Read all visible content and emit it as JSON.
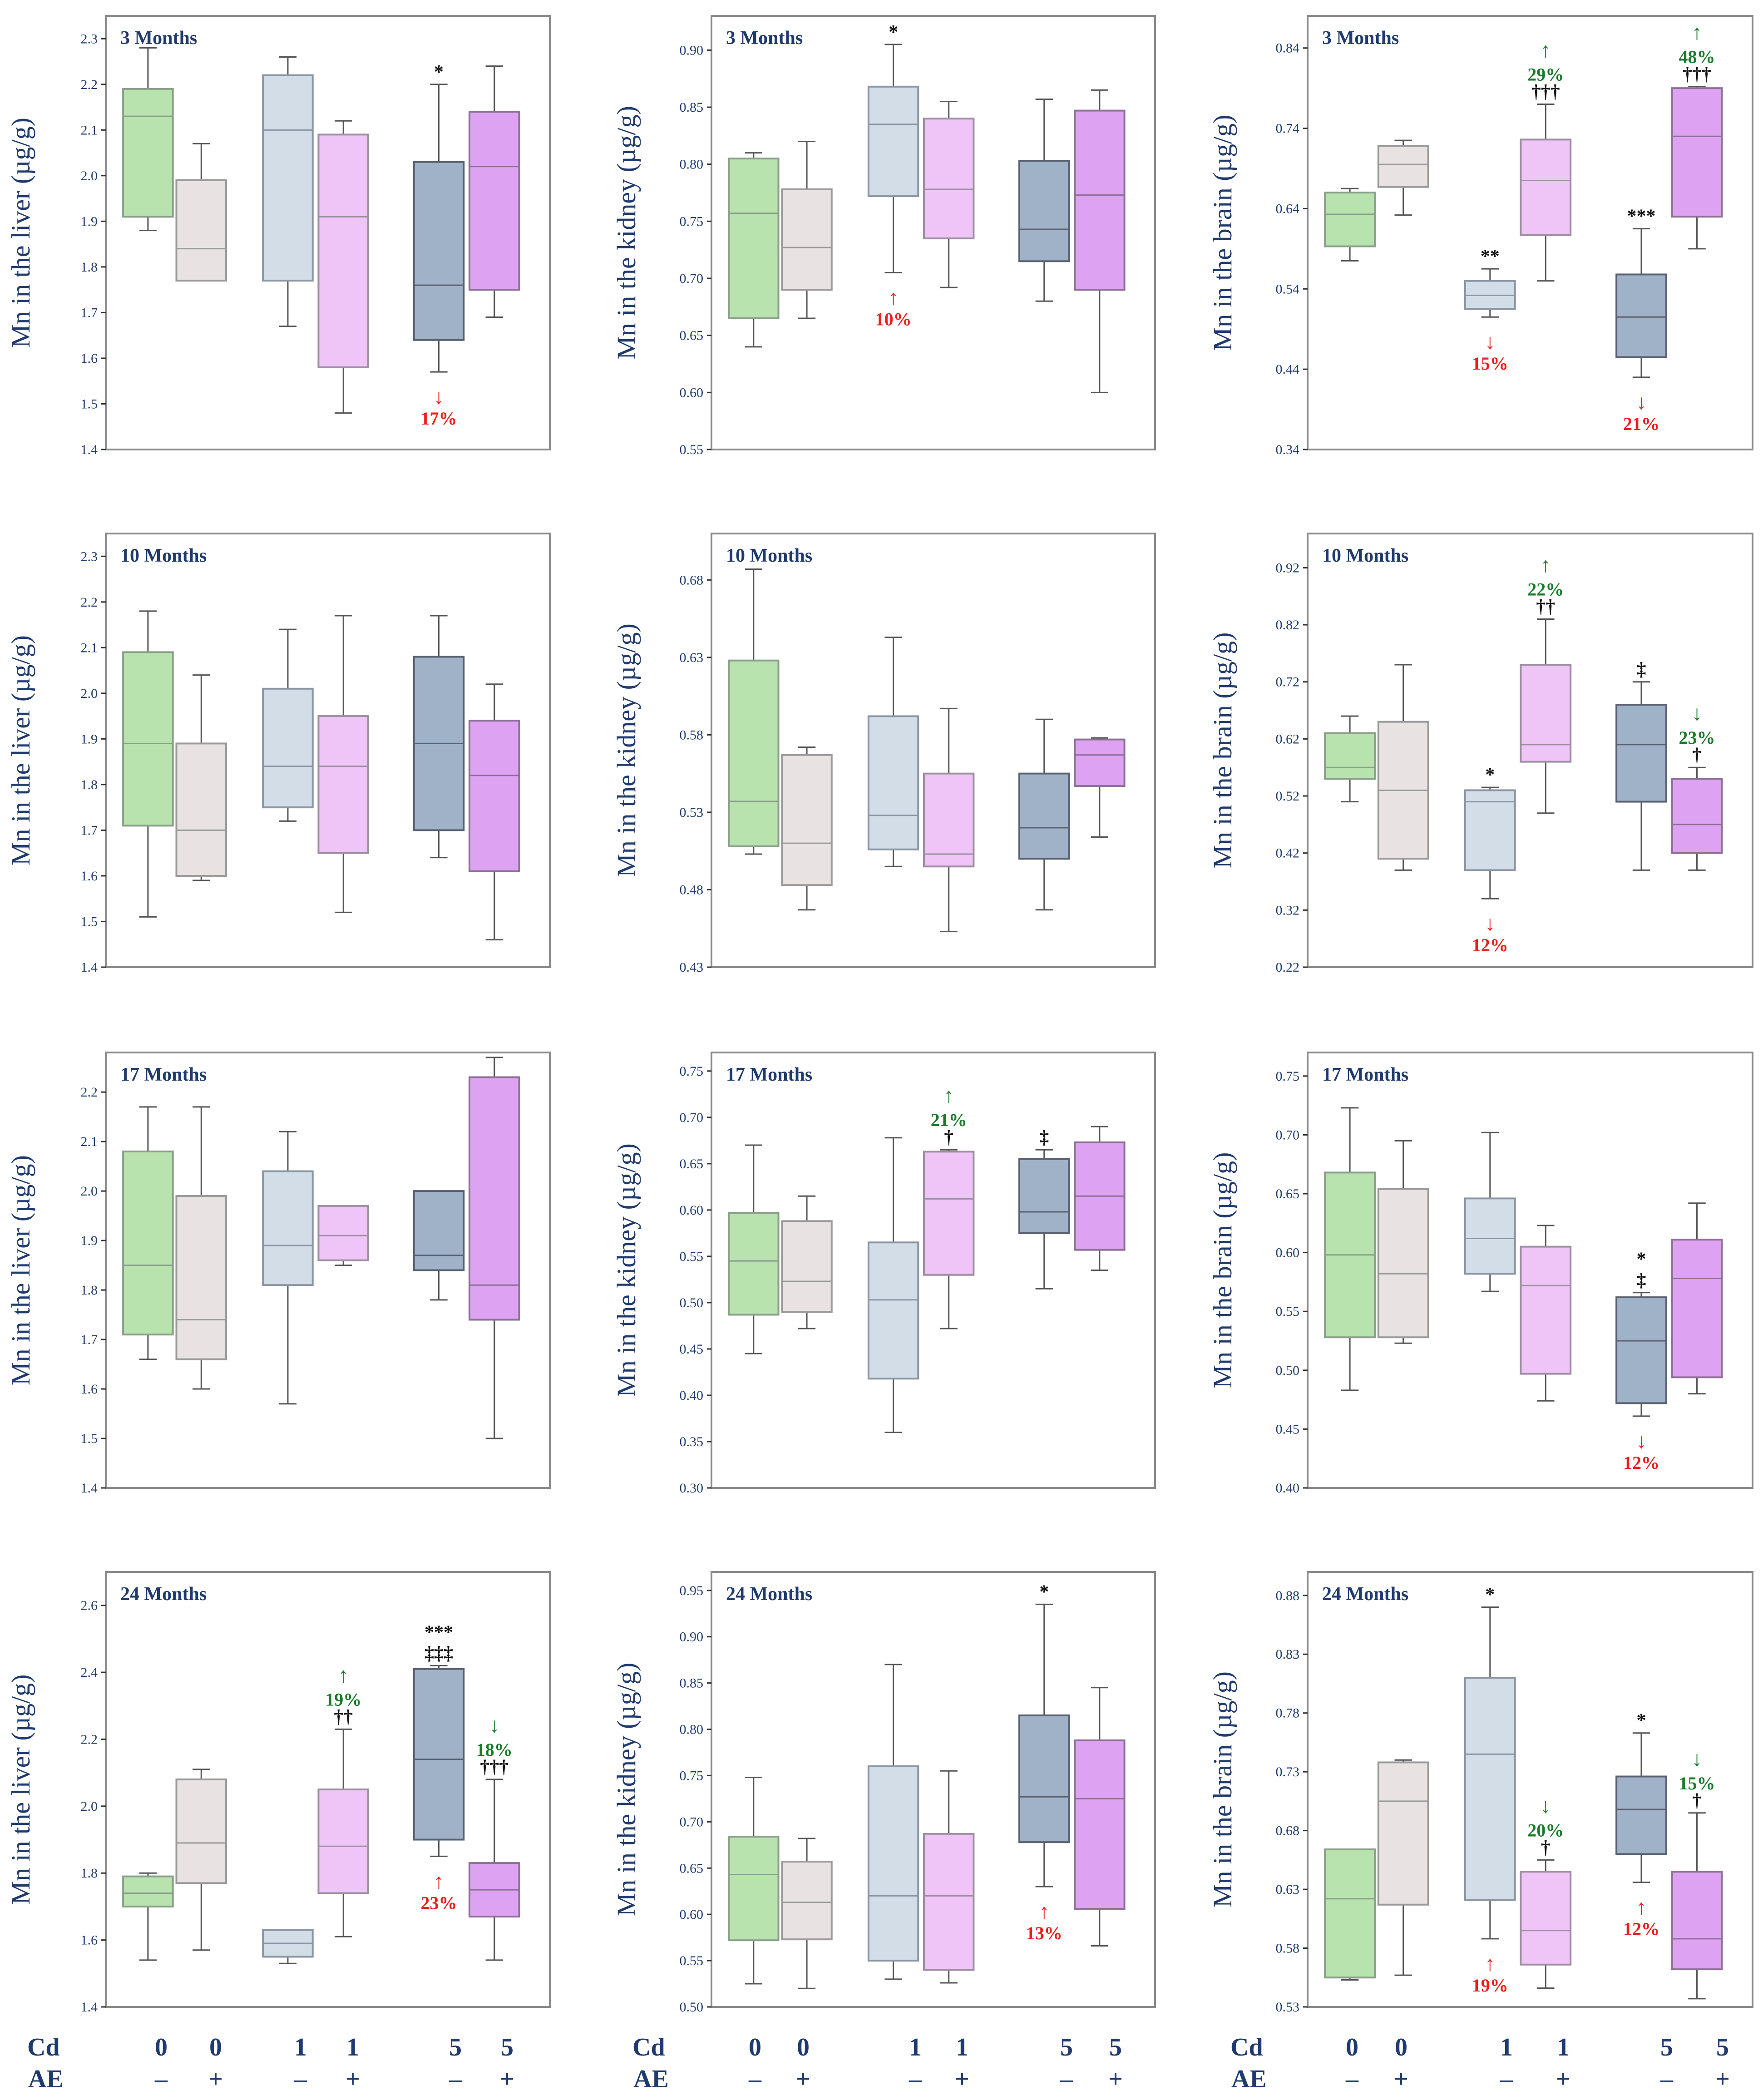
{
  "colors": {
    "axis_text": "#1f3a6e",
    "whisker": "#555555",
    "up_red": "#ee1c1c",
    "green": "#1a7a2a",
    "sig_black": "#111111",
    "groups": [
      {
        "fill": "#b8e3ae",
        "stroke": "#8a9e8a"
      },
      {
        "fill": "#e8e2e2",
        "stroke": "#9a9a9a"
      },
      {
        "fill": "#d3dde8",
        "stroke": "#8a96a2"
      },
      {
        "fill": "#efc4f7",
        "stroke": "#9c90a0"
      },
      {
        "fill": "#9fb2c8",
        "stroke": "#5a6070"
      },
      {
        "fill": "#dda3f2",
        "stroke": "#8c7094"
      }
    ]
  },
  "bottom_labels": {
    "cd_label": "Cd",
    "ae_label": "AE",
    "cd_values": [
      "0",
      "0",
      "1",
      "1",
      "5",
      "5"
    ],
    "ae_values": [
      "–",
      "+",
      "–",
      "+",
      "–",
      "+"
    ]
  },
  "chart_data": [
    {
      "type": "box",
      "title": "3 Months",
      "ylabel": "Mn in the liver (µg/g)",
      "yrange": [
        1.4,
        2.35
      ],
      "ticks": [
        "1.4",
        "1.5",
        "1.6",
        "1.7",
        "1.8",
        "1.9",
        "2.0",
        "2.1",
        "2.2",
        "2.3"
      ],
      "boxes": [
        [
          1.88,
          1.91,
          2.13,
          2.19,
          2.28
        ],
        [
          1.77,
          1.77,
          1.84,
          1.99,
          2.07
        ],
        [
          1.67,
          1.77,
          2.1,
          2.22,
          2.26
        ],
        [
          1.48,
          1.58,
          1.91,
          2.09,
          2.12
        ],
        [
          1.57,
          1.64,
          1.76,
          2.03,
          2.2
        ],
        [
          1.69,
          1.75,
          2.02,
          2.14,
          2.24
        ]
      ],
      "annotations": [
        {
          "box": 4,
          "pos": "above",
          "lines": [
            "*"
          ],
          "color": "black"
        },
        {
          "box": 4,
          "pos": "below",
          "arrow": "↓",
          "lines": [
            "17%"
          ],
          "color": "red"
        }
      ]
    },
    {
      "type": "box",
      "title": "3 Months",
      "ylabel": "Mn in the kidney (µg/g)",
      "yrange": [
        0.55,
        0.93
      ],
      "ticks": [
        "0.55",
        "0.60",
        "0.65",
        "0.70",
        "0.75",
        "0.80",
        "0.85",
        "0.90"
      ],
      "boxes": [
        [
          0.64,
          0.665,
          0.757,
          0.805,
          0.81
        ],
        [
          0.665,
          0.69,
          0.727,
          0.778,
          0.82
        ],
        [
          0.705,
          0.772,
          0.835,
          0.868,
          0.905
        ],
        [
          0.692,
          0.735,
          0.778,
          0.84,
          0.855
        ],
        [
          0.68,
          0.715,
          0.743,
          0.803,
          0.857
        ],
        [
          0.6,
          0.69,
          0.773,
          0.847,
          0.865
        ]
      ],
      "annotations": [
        {
          "box": 2,
          "pos": "above",
          "lines": [
            "*"
          ],
          "color": "black"
        },
        {
          "box": 2,
          "pos": "below",
          "arrow": "↑",
          "lines": [
            "10%"
          ],
          "color": "red"
        }
      ]
    },
    {
      "type": "box",
      "title": "3 Months",
      "ylabel": "Mn in the brain (µg/g)",
      "yrange": [
        0.34,
        0.88
      ],
      "ticks": [
        "0.34",
        "0.44",
        "0.54",
        "0.64",
        "0.74",
        "0.84"
      ],
      "boxes": [
        [
          0.575,
          0.593,
          0.633,
          0.66,
          0.665
        ],
        [
          0.632,
          0.667,
          0.695,
          0.718,
          0.725
        ],
        [
          0.505,
          0.515,
          0.532,
          0.55,
          0.565
        ],
        [
          0.55,
          0.607,
          0.675,
          0.726,
          0.77
        ],
        [
          0.43,
          0.455,
          0.505,
          0.558,
          0.615
        ],
        [
          0.59,
          0.63,
          0.73,
          0.79,
          0.792
        ]
      ],
      "annotations": [
        {
          "box": 2,
          "pos": "above",
          "lines": [
            "**"
          ],
          "color": "black"
        },
        {
          "box": 2,
          "pos": "below",
          "arrow": "↓",
          "lines": [
            "15%"
          ],
          "color": "red"
        },
        {
          "box": 3,
          "pos": "above",
          "lines": [
            "†††"
          ],
          "color": "black"
        },
        {
          "box": 3,
          "pos": "above2",
          "arrow": "↑",
          "lines": [
            "29%"
          ],
          "color": "green"
        },
        {
          "box": 4,
          "pos": "above",
          "lines": [
            "***"
          ],
          "color": "black"
        },
        {
          "box": 4,
          "pos": "below",
          "arrow": "↓",
          "lines": [
            "21%"
          ],
          "color": "red"
        },
        {
          "box": 5,
          "pos": "above",
          "lines": [
            "†††"
          ],
          "color": "black"
        },
        {
          "box": 5,
          "pos": "above2",
          "arrow": "↑",
          "lines": [
            "48%"
          ],
          "color": "green"
        }
      ]
    },
    {
      "type": "box",
      "title": "10 Months",
      "ylabel": "Mn in the liver (µg/g)",
      "yrange": [
        1.4,
        2.35
      ],
      "ticks": [
        "1.4",
        "1.5",
        "1.6",
        "1.7",
        "1.8",
        "1.9",
        "2.0",
        "2.1",
        "2.2",
        "2.3"
      ],
      "boxes": [
        [
          1.51,
          1.71,
          1.89,
          2.09,
          2.18
        ],
        [
          1.59,
          1.6,
          1.7,
          1.89,
          2.04
        ],
        [
          1.72,
          1.75,
          1.84,
          2.01,
          2.14
        ],
        [
          1.52,
          1.65,
          1.84,
          1.95,
          2.17
        ],
        [
          1.64,
          1.7,
          1.89,
          2.08,
          2.17
        ],
        [
          1.46,
          1.61,
          1.82,
          1.94,
          2.02
        ]
      ],
      "annotations": []
    },
    {
      "type": "box",
      "title": "10 Months",
      "ylabel": "Mn in the kidney (µg/g)",
      "yrange": [
        0.43,
        0.71
      ],
      "ticks": [
        "0.43",
        "0.48",
        "0.53",
        "0.58",
        "0.63",
        "0.68"
      ],
      "boxes": [
        [
          0.503,
          0.508,
          0.537,
          0.628,
          0.687
        ],
        [
          0.467,
          0.483,
          0.51,
          0.567,
          0.572
        ],
        [
          0.495,
          0.506,
          0.528,
          0.592,
          0.643
        ],
        [
          0.453,
          0.495,
          0.503,
          0.555,
          0.597
        ],
        [
          0.467,
          0.5,
          0.52,
          0.555,
          0.59
        ],
        [
          0.514,
          0.547,
          0.567,
          0.577,
          0.578
        ]
      ],
      "annotations": []
    },
    {
      "type": "box",
      "title": "10 Months",
      "ylabel": "Mn in the brain (µg/g)",
      "yrange": [
        0.22,
        0.98
      ],
      "ticks": [
        "0.22",
        "0.32",
        "0.42",
        "0.52",
        "0.62",
        "0.72",
        "0.82",
        "0.92"
      ],
      "boxes": [
        [
          0.51,
          0.55,
          0.57,
          0.63,
          0.66
        ],
        [
          0.39,
          0.41,
          0.53,
          0.65,
          0.75
        ],
        [
          0.34,
          0.39,
          0.51,
          0.53,
          0.535
        ],
        [
          0.49,
          0.58,
          0.61,
          0.75,
          0.83
        ],
        [
          0.39,
          0.51,
          0.61,
          0.68,
          0.72
        ],
        [
          0.39,
          0.42,
          0.47,
          0.55,
          0.57
        ]
      ],
      "annotations": [
        {
          "box": 2,
          "pos": "above",
          "lines": [
            "*"
          ],
          "color": "black"
        },
        {
          "box": 2,
          "pos": "below",
          "arrow": "↓",
          "lines": [
            "12%"
          ],
          "color": "red"
        },
        {
          "box": 3,
          "pos": "above",
          "lines": [
            "††"
          ],
          "color": "black"
        },
        {
          "box": 3,
          "pos": "above2",
          "arrow": "↑",
          "lines": [
            "22%"
          ],
          "color": "green"
        },
        {
          "box": 4,
          "pos": "above",
          "lines": [
            "‡"
          ],
          "color": "black"
        },
        {
          "box": 5,
          "pos": "above",
          "lines": [
            "†"
          ],
          "color": "black"
        },
        {
          "box": 5,
          "pos": "above2",
          "arrow": "↓",
          "lines": [
            "23%"
          ],
          "color": "green"
        }
      ]
    },
    {
      "type": "box",
      "title": "17 Months",
      "ylabel": "Mn in the liver (µg/g)",
      "yrange": [
        1.4,
        2.28
      ],
      "ticks": [
        "1.4",
        "1.5",
        "1.6",
        "1.7",
        "1.8",
        "1.9",
        "2.0",
        "2.1",
        "2.2"
      ],
      "boxes": [
        [
          1.66,
          1.71,
          1.85,
          2.08,
          2.17
        ],
        [
          1.6,
          1.66,
          1.74,
          1.99,
          2.17
        ],
        [
          1.57,
          1.81,
          1.89,
          2.04,
          2.12
        ],
        [
          1.85,
          1.86,
          1.91,
          1.97,
          1.97
        ],
        [
          1.78,
          1.84,
          1.87,
          2.0,
          2.0
        ],
        [
          1.5,
          1.74,
          1.81,
          2.23,
          2.27
        ]
      ],
      "annotations": []
    },
    {
      "type": "box",
      "title": "17 Months",
      "ylabel": "Mn in the kidney (µg/g)",
      "yrange": [
        0.3,
        0.77
      ],
      "ticks": [
        "0.30",
        "0.35",
        "0.40",
        "0.45",
        "0.50",
        "0.55",
        "0.60",
        "0.65",
        "0.70",
        "0.75"
      ],
      "boxes": [
        [
          0.445,
          0.487,
          0.545,
          0.597,
          0.67
        ],
        [
          0.472,
          0.49,
          0.523,
          0.588,
          0.615
        ],
        [
          0.36,
          0.418,
          0.503,
          0.565,
          0.678
        ],
        [
          0.472,
          0.53,
          0.612,
          0.663,
          0.665
        ],
        [
          0.515,
          0.575,
          0.598,
          0.655,
          0.665
        ],
        [
          0.535,
          0.557,
          0.615,
          0.673,
          0.69
        ]
      ],
      "annotations": [
        {
          "box": 3,
          "pos": "above",
          "lines": [
            "†"
          ],
          "color": "black"
        },
        {
          "box": 3,
          "pos": "above2",
          "arrow": "↑",
          "lines": [
            "21%"
          ],
          "color": "green"
        },
        {
          "box": 4,
          "pos": "above",
          "lines": [
            "‡"
          ],
          "color": "black"
        }
      ]
    },
    {
      "type": "box",
      "title": "17 Months",
      "ylabel": "Mn in the brain (µg/g)",
      "yrange": [
        0.4,
        0.77
      ],
      "ticks": [
        "0.40",
        "0.45",
        "0.50",
        "0.55",
        "0.60",
        "0.65",
        "0.70",
        "0.75"
      ],
      "boxes": [
        [
          0.483,
          0.528,
          0.598,
          0.668,
          0.723
        ],
        [
          0.523,
          0.528,
          0.582,
          0.654,
          0.695
        ],
        [
          0.567,
          0.582,
          0.612,
          0.646,
          0.702
        ],
        [
          0.474,
          0.497,
          0.572,
          0.605,
          0.623
        ],
        [
          0.461,
          0.472,
          0.525,
          0.562,
          0.566
        ],
        [
          0.48,
          0.494,
          0.578,
          0.611,
          0.642
        ]
      ],
      "annotations": [
        {
          "box": 4,
          "pos": "above",
          "lines": [
            "*",
            "‡"
          ],
          "color": "black"
        },
        {
          "box": 4,
          "pos": "below",
          "arrow": "↓",
          "lines": [
            "12%"
          ],
          "color": "red"
        }
      ]
    },
    {
      "type": "box",
      "title": "24 Months",
      "ylabel": "Mn in the liver (µg/g)",
      "yrange": [
        1.4,
        2.7
      ],
      "ticks": [
        "1.4",
        "1.6",
        "1.8",
        "2.0",
        "2.2",
        "2.4",
        "2.6"
      ],
      "boxes": [
        [
          1.54,
          1.7,
          1.74,
          1.79,
          1.8
        ],
        [
          1.57,
          1.77,
          1.89,
          2.08,
          2.11
        ],
        [
          1.53,
          1.55,
          1.59,
          1.63,
          1.63
        ],
        [
          1.61,
          1.74,
          1.88,
          2.05,
          2.23
        ],
        [
          1.85,
          1.9,
          2.14,
          2.41,
          2.42
        ],
        [
          1.54,
          1.67,
          1.75,
          1.83,
          2.08
        ]
      ],
      "annotations": [
        {
          "box": 3,
          "pos": "above",
          "lines": [
            "††"
          ],
          "color": "black"
        },
        {
          "box": 3,
          "pos": "above2",
          "arrow": "↑",
          "lines": [
            "19%"
          ],
          "color": "green"
        },
        {
          "box": 4,
          "pos": "above",
          "lines": [
            "***",
            "‡‡‡"
          ],
          "color": "black"
        },
        {
          "box": 4,
          "pos": "below",
          "arrow": "↑",
          "lines": [
            "23%"
          ],
          "color": "red"
        },
        {
          "box": 5,
          "pos": "above",
          "lines": [
            "†††"
          ],
          "color": "black"
        },
        {
          "box": 5,
          "pos": "above2",
          "arrow": "↓",
          "lines": [
            "18%"
          ],
          "color": "green"
        }
      ]
    },
    {
      "type": "box",
      "title": "24 Months",
      "ylabel": "Mn in the kidney (µg/g)",
      "yrange": [
        0.5,
        0.97
      ],
      "ticks": [
        "0.50",
        "0.55",
        "0.60",
        "0.65",
        "0.70",
        "0.75",
        "0.80",
        "0.85",
        "0.90",
        "0.95"
      ],
      "boxes": [
        [
          0.525,
          0.572,
          0.643,
          0.684,
          0.748
        ],
        [
          0.52,
          0.573,
          0.613,
          0.657,
          0.682
        ],
        [
          0.53,
          0.55,
          0.62,
          0.76,
          0.87
        ],
        [
          0.526,
          0.54,
          0.62,
          0.687,
          0.755
        ],
        [
          0.63,
          0.678,
          0.727,
          0.815,
          0.935
        ],
        [
          0.566,
          0.606,
          0.725,
          0.788,
          0.845
        ]
      ],
      "annotations": [
        {
          "box": 4,
          "pos": "above",
          "lines": [
            "*"
          ],
          "color": "black"
        },
        {
          "box": 4,
          "pos": "below",
          "arrow": "↑",
          "lines": [
            "13%"
          ],
          "color": "red"
        }
      ]
    },
    {
      "type": "box",
      "title": "24 Months",
      "ylabel": "Mn in the brain (µg/g)",
      "yrange": [
        0.53,
        0.9
      ],
      "ticks": [
        "0.53",
        "0.58",
        "0.63",
        "0.68",
        "0.73",
        "0.78",
        "0.83",
        "0.88"
      ],
      "boxes": [
        [
          0.553,
          0.555,
          0.622,
          0.664,
          0.664
        ],
        [
          0.557,
          0.617,
          0.705,
          0.738,
          0.74
        ],
        [
          0.588,
          0.621,
          0.745,
          0.81,
          0.87
        ],
        [
          0.546,
          0.566,
          0.595,
          0.645,
          0.655
        ],
        [
          0.636,
          0.66,
          0.698,
          0.726,
          0.763
        ],
        [
          0.537,
          0.562,
          0.588,
          0.645,
          0.695
        ]
      ],
      "annotations": [
        {
          "box": 2,
          "pos": "above",
          "lines": [
            "*"
          ],
          "color": "black"
        },
        {
          "box": 2,
          "pos": "below",
          "arrow": "↑",
          "lines": [
            "19%"
          ],
          "color": "red"
        },
        {
          "box": 3,
          "pos": "above",
          "lines": [
            "†"
          ],
          "color": "black"
        },
        {
          "box": 3,
          "pos": "above2",
          "arrow": "↓",
          "lines": [
            "20%"
          ],
          "color": "green"
        },
        {
          "box": 4,
          "pos": "above",
          "lines": [
            "*"
          ],
          "color": "black"
        },
        {
          "box": 4,
          "pos": "below",
          "arrow": "↑",
          "lines": [
            "12%"
          ],
          "color": "red"
        },
        {
          "box": 5,
          "pos": "above",
          "lines": [
            "†"
          ],
          "color": "black"
        },
        {
          "box": 5,
          "pos": "above2",
          "arrow": "↓",
          "lines": [
            "15%"
          ],
          "color": "green"
        }
      ]
    }
  ]
}
